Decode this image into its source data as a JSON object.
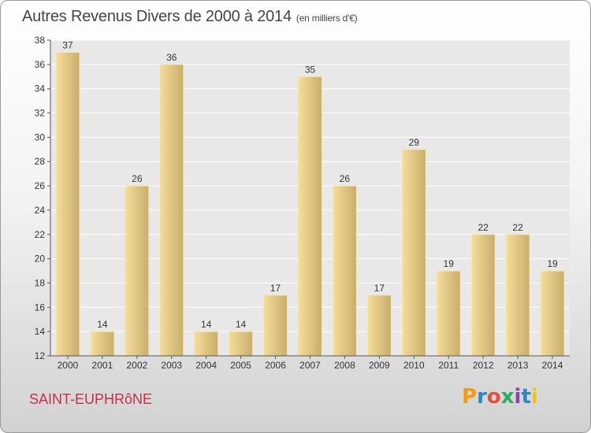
{
  "header": {
    "title": "Autres Revenus Divers de 2000 à 2014",
    "unit": "(en milliers d'€)"
  },
  "footer": {
    "commune": "SAINT-EUPHRôNE",
    "brand": "Proxiti",
    "brand_colors": [
      "#f39c12",
      "#2e86c1",
      "#e74c3c",
      "#27ae60",
      "#8e44ad",
      "#2e86c1",
      "#f1c40f"
    ]
  },
  "colors": {
    "bar_light": "#f5dd9a",
    "bar_dark": "#c9ad6a",
    "plot_background": "#e8e8e8",
    "grid": "#ffffff",
    "text": "#333333"
  },
  "chart_data": {
    "type": "bar",
    "title": "Autres Revenus Divers de 2000 à 2014",
    "categories": [
      "2000",
      "2001",
      "2002",
      "2003",
      "2004",
      "2005",
      "2006",
      "2007",
      "2008",
      "2009",
      "2010",
      "2011",
      "2012",
      "2013",
      "2014"
    ],
    "values": [
      37,
      14,
      26,
      36,
      14,
      14,
      17,
      35,
      26,
      17,
      29,
      19,
      22,
      22,
      19
    ],
    "ylim": [
      12,
      38
    ],
    "yticks": [
      12,
      14,
      16,
      18,
      20,
      22,
      24,
      26,
      28,
      30,
      32,
      34,
      36,
      38
    ],
    "grid": true,
    "data_labels": true
  }
}
